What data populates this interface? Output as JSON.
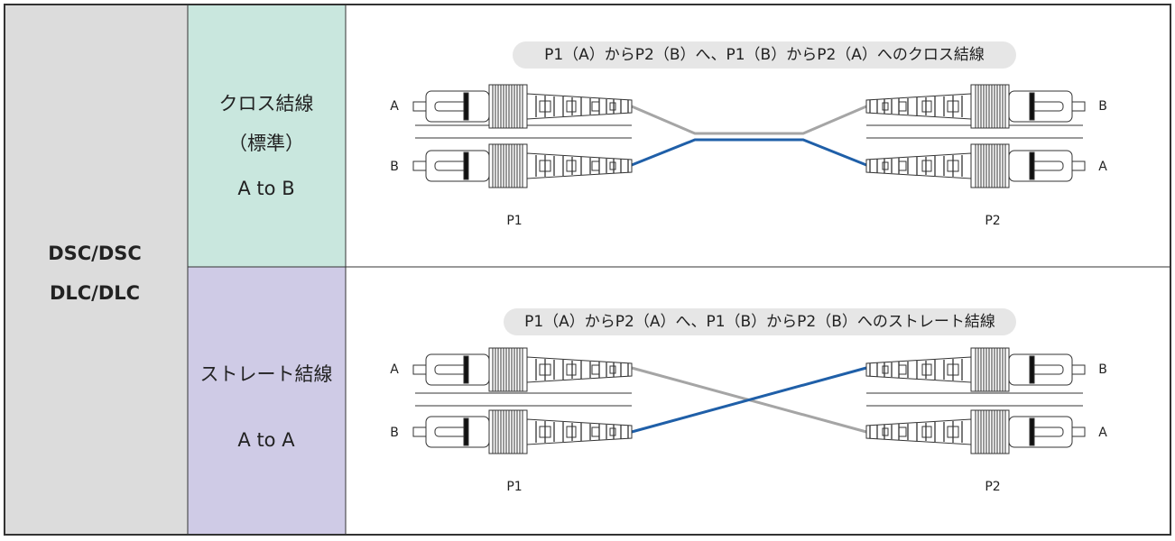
{
  "left_label": [
    "DSC/DSC",
    "DLC/DLC"
  ],
  "rows": [
    {
      "name": [
        "クロス結線",
        "（標準）"
      ],
      "code": "A to B",
      "caption": "P1（A）からP2（B）へ、P1（B）からP2（A）へのクロス結線",
      "left_ports": [
        "A",
        "B"
      ],
      "right_ports": [
        "B",
        "A"
      ],
      "left_end": "P1",
      "right_end": "P2"
    },
    {
      "name": [
        "ストレート結線"
      ],
      "code": "A to A",
      "caption": "P1（A）からP2（A）へ、P1（B）からP2（B）へのストレート結線",
      "left_ports": [
        "A",
        "B"
      ],
      "right_ports": [
        "B",
        "A"
      ],
      "left_end": "P1",
      "right_end": "P2"
    }
  ]
}
